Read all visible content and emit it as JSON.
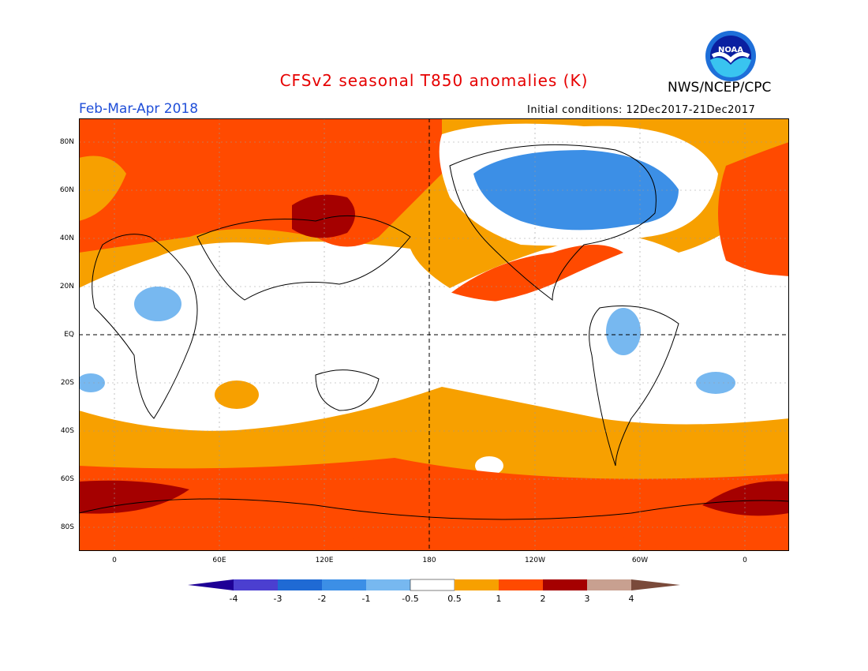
{
  "header": {
    "title": "CFSv2 seasonal T850 anomalies (K)",
    "org": "NWS/NCEP/CPC",
    "season": "Feb-Mar-Apr 2018",
    "initial_conditions": "Initial conditions: 12Dec2017-21Dec2017",
    "logo_text": "NOAA"
  },
  "axes": {
    "y_labels": [
      "80N",
      "60N",
      "40N",
      "20N",
      "EQ",
      "20S",
      "40S",
      "60S",
      "80S"
    ],
    "x_labels": [
      "0",
      "60E",
      "120E",
      "180",
      "120W",
      "60W",
      "0"
    ]
  },
  "colorbar": {
    "labels": [
      "-4",
      "-3",
      "-2",
      "-1",
      "-0.5",
      "0.5",
      "1",
      "2",
      "3",
      "4"
    ],
    "colors": {
      "lt_minus4": "#1e0096",
      "minus4_minus3": "#4b3fd0",
      "minus3_minus2": "#1f6ad4",
      "minus2_minus1": "#3c8fe6",
      "minus1_minus05": "#77b8f0",
      "neutral": "#ffffff",
      "p05_1": "#f7a000",
      "p1_2": "#ff4a00",
      "p2_3": "#a50000",
      "p3_4": "#c8a090",
      "gt4": "#7a4a3a"
    }
  }
}
